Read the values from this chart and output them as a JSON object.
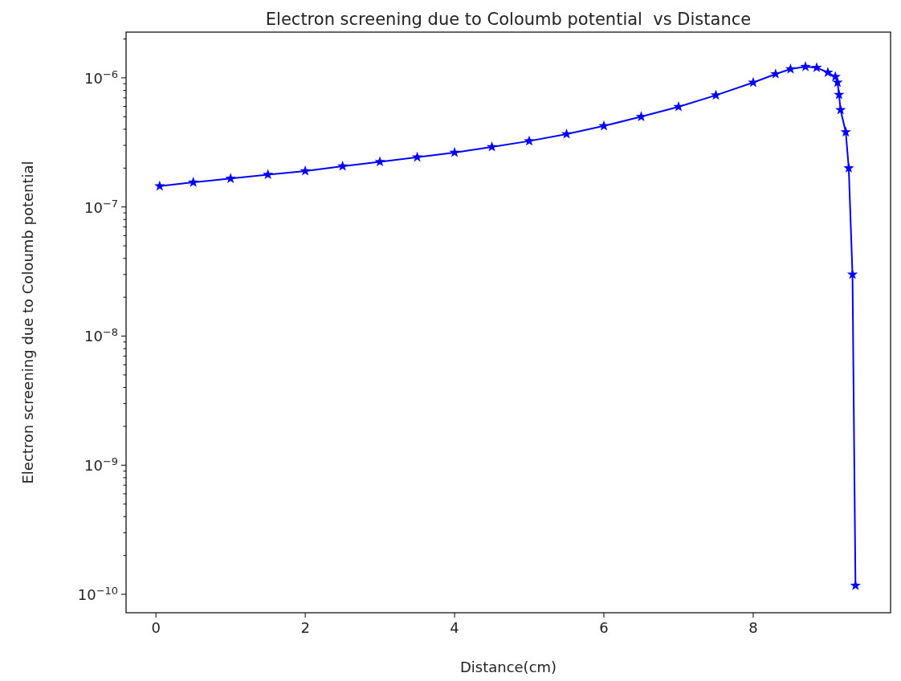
{
  "chart_data": {
    "type": "line",
    "title": "Electron screening due to Coloumb potential  vs Distance",
    "xlabel": "Distance(cm)",
    "ylabel": "Electron screening due to Coloumb potential",
    "log": "y",
    "marker": "star",
    "line_style": "solid",
    "grid": false,
    "xlim": [
      -0.4,
      9.84
    ],
    "xticks": [
      0,
      2,
      4,
      6,
      8
    ],
    "ylim": [
      7.2e-11,
      2.26e-06
    ],
    "yticks": [
      {
        "value": 1e-10,
        "label": "10$^{−10}$"
      },
      {
        "value": 1e-09,
        "label": "10$^{−9}$"
      },
      {
        "value": 1e-08,
        "label": "10$^{−8}$"
      },
      {
        "value": 1e-07,
        "label": "10$^{−7}$"
      },
      {
        "value": 1e-06,
        "label": "10$^{−6}$"
      },
      {
        "value": 2e-10,
        "label": null
      },
      {
        "value": 3e-10,
        "label": null
      },
      {
        "value": 4e-10,
        "label": null
      },
      {
        "value": 5e-10,
        "label": null
      },
      {
        "value": 6e-10,
        "label": null
      },
      {
        "value": 7e-10,
        "label": null
      },
      {
        "value": 8e-10,
        "label": null
      },
      {
        "value": 9e-10,
        "label": null
      },
      {
        "value": 2e-09,
        "label": null
      },
      {
        "value": 3e-09,
        "label": null
      },
      {
        "value": 4e-09,
        "label": null
      },
      {
        "value": 5e-09,
        "label": null
      },
      {
        "value": 6e-09,
        "label": null
      },
      {
        "value": 7e-09,
        "label": null
      },
      {
        "value": 8e-09,
        "label": null
      },
      {
        "value": 9e-09,
        "label": null
      },
      {
        "value": 2e-08,
        "label": null
      },
      {
        "value": 3e-08,
        "label": null
      },
      {
        "value": 4e-08,
        "label": null
      },
      {
        "value": 5e-08,
        "label": null
      },
      {
        "value": 6e-08,
        "label": null
      },
      {
        "value": 7e-08,
        "label": null
      },
      {
        "value": 8e-08,
        "label": null
      },
      {
        "value": 9e-08,
        "label": null
      },
      {
        "value": 2e-07,
        "label": null
      },
      {
        "value": 3e-07,
        "label": null
      },
      {
        "value": 4e-07,
        "label": null
      },
      {
        "value": 5e-07,
        "label": null
      },
      {
        "value": 6e-07,
        "label": null
      },
      {
        "value": 7e-07,
        "label": null
      },
      {
        "value": 8e-07,
        "label": null
      },
      {
        "value": 9e-07,
        "label": null
      },
      {
        "value": 2e-06,
        "label": null
      }
    ],
    "series": [
      {
        "color": "#0000ff",
        "x": [
          0.05,
          0.5,
          1,
          1.5,
          2,
          2.5,
          3,
          3.5,
          4,
          4.5,
          5,
          5.5,
          6,
          6.5,
          7,
          7.5,
          8,
          8.3,
          8.5,
          8.7,
          8.85,
          9.0,
          9.1,
          9.13,
          9.15,
          9.17,
          9.24,
          9.28,
          9.33,
          9.37
        ],
        "values": [
          1.45e-07,
          1.55e-07,
          1.66e-07,
          1.78e-07,
          1.9e-07,
          2.07e-07,
          2.24e-07,
          2.43e-07,
          2.64e-07,
          2.92e-07,
          3.24e-07,
          3.67e-07,
          4.24e-07,
          5e-07,
          5.97e-07,
          7.33e-07,
          9.2e-07,
          1.07e-06,
          1.17e-06,
          1.22e-06,
          1.2e-06,
          1.1e-06,
          1.02e-06,
          9.2e-07,
          7.4e-07,
          5.65e-07,
          3.8e-07,
          2e-07,
          3e-08,
          1.17e-10
        ]
      }
    ]
  }
}
